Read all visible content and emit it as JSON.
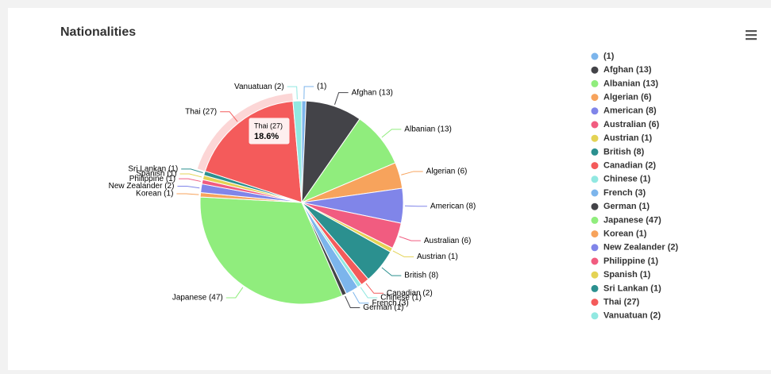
{
  "chart_data": {
    "type": "pie",
    "title": "Nationalities",
    "values": [
      1,
      13,
      13,
      6,
      8,
      6,
      1,
      8,
      2,
      1,
      3,
      1,
      47,
      1,
      2,
      1,
      1,
      1,
      27,
      2
    ],
    "value_labels": [
      "(1)",
      "Afghan (13)",
      "Albanian (13)",
      "Algerian (6)",
      "American (8)",
      "Australian (6)",
      "Austrian (1)",
      "British (8)",
      "Canadian (2)",
      "Chinese (1)",
      "French (3)",
      "German (1)",
      "Japanese (47)",
      "Korean (1)",
      "New Zealander (2)",
      "Philippine (1)",
      "Spanish (1)",
      "Sri Lankan (1)",
      "Thai (27)",
      "Vanuatuan (2)"
    ],
    "colors": [
      "#7cb5ec",
      "#434348",
      "#90ed7d",
      "#f7a35c",
      "#8085e9",
      "#f15c80",
      "#e4d354",
      "#2b908f",
      "#f45b5b",
      "#91e8e1",
      "#7cb5ec",
      "#434348",
      "#90ed7d",
      "#f7a35c",
      "#8085e9",
      "#f15c80",
      "#e4d354",
      "#2b908f",
      "#f45b5b",
      "#91e8e1"
    ],
    "legend": "right",
    "tooltip": {
      "title": "Thai (27)",
      "percent": "18.6%"
    }
  }
}
